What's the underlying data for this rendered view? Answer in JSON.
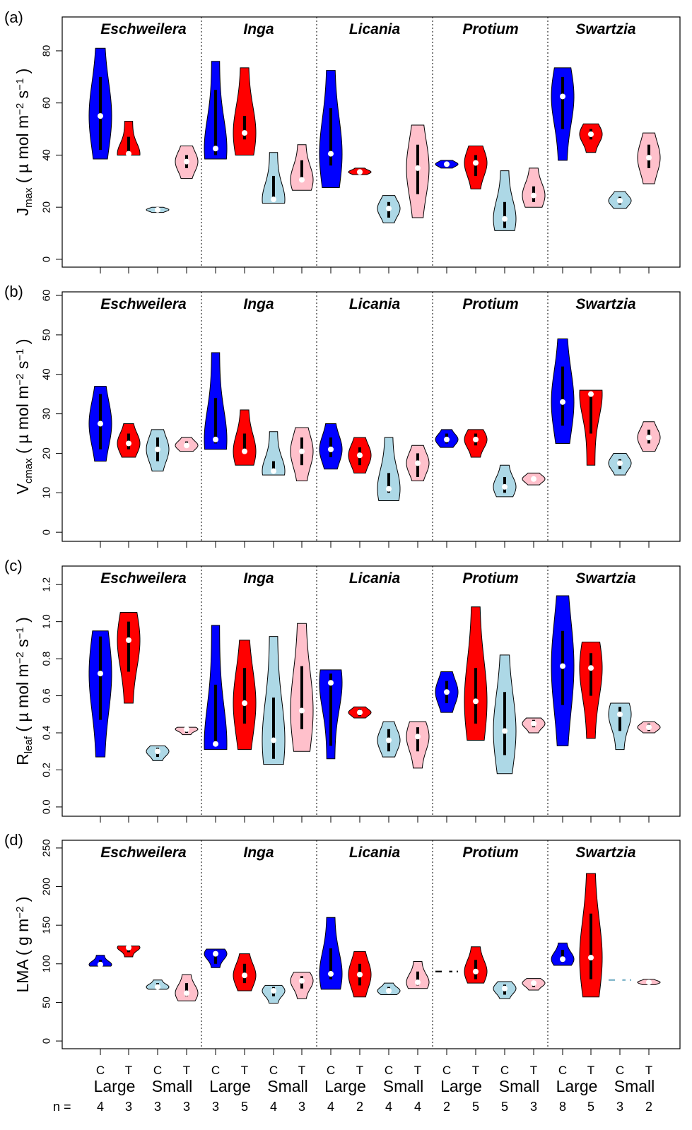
{
  "colors": {
    "CL": "#0000ff",
    "TL": "#ff0000",
    "CS": "#add8e6",
    "TS": "#ffc0cb"
  },
  "x_axis": {
    "treatment_labels": [
      "C",
      "T",
      "C",
      "T",
      "C",
      "T",
      "C",
      "T",
      "C",
      "T",
      "C",
      "T",
      "C",
      "T",
      "C",
      "T",
      "C",
      "T",
      "C",
      "T"
    ],
    "size_labels": [
      "Large",
      "Small",
      "Large",
      "Small",
      "Large",
      "Small",
      "Large",
      "Small",
      "Large",
      "Small"
    ],
    "n_prefix": "n =",
    "n_values": [
      "4",
      "3",
      "3",
      "3",
      "3",
      "5",
      "4",
      "3",
      "4",
      "2",
      "4",
      "4",
      "2",
      "5",
      "5",
      "3",
      "8",
      "5",
      "3",
      "2"
    ]
  },
  "chart_data": [
    {
      "type": "violin",
      "panel_label": "(a)",
      "ylabel": {
        "main": "J",
        "sub": "max",
        "units": " ( µ mol m",
        "sup1": "−2",
        "mid": " s",
        "sup2": "−1",
        "end": " )"
      },
      "ylim": [
        -3,
        93
      ],
      "yticks": [
        "0",
        "20",
        "40",
        "60",
        "80"
      ],
      "genera": [
        "Eschweilera",
        "Inga",
        "Licania",
        "Protium",
        "Swartzia"
      ],
      "groups": [
        "CL",
        "TL",
        "CS",
        "TS"
      ],
      "violins": [
        {
          "min": 38.5,
          "max": 81,
          "median": 55,
          "q1": 42,
          "q3": 70
        },
        {
          "min": 40,
          "max": 53,
          "median": 40.5,
          "q1": 40,
          "q3": 47
        },
        {
          "min": 18,
          "max": 20,
          "median": 19,
          "q1": 18.5,
          "q3": 19.5
        },
        {
          "min": 31,
          "max": 43.5,
          "median": 37.5,
          "q1": 35,
          "q3": 40
        },
        {
          "min": 38.5,
          "max": 76,
          "median": 42.5,
          "q1": 40,
          "q3": 65
        },
        {
          "min": 40,
          "max": 73.5,
          "median": 48.5,
          "q1": 46,
          "q3": 55
        },
        {
          "min": 21.5,
          "max": 41,
          "median": 23,
          "q1": 23,
          "q3": 32
        },
        {
          "min": 26.5,
          "max": 44,
          "median": 30.5,
          "q1": 30,
          "q3": 38
        },
        {
          "min": 27.5,
          "max": 72.5,
          "median": 40.5,
          "q1": 36,
          "q3": 58
        },
        {
          "min": 32.5,
          "max": 35,
          "median": 33.5,
          "q1": 33,
          "q3": 34
        },
        {
          "min": 14,
          "max": 24.5,
          "median": 19.5,
          "q1": 16,
          "q3": 22
        },
        {
          "min": 16,
          "max": 51.5,
          "median": 35,
          "q1": 25,
          "q3": 44
        },
        {
          "min": 35,
          "max": 38,
          "median": 36.5,
          "q1": 35.5,
          "q3": 37.5
        },
        {
          "min": 27,
          "max": 43.5,
          "median": 37,
          "q1": 32,
          "q3": 40
        },
        {
          "min": 11,
          "max": 34,
          "median": 15.5,
          "q1": 12,
          "q3": 22
        },
        {
          "min": 20,
          "max": 35,
          "median": 24.5,
          "q1": 22,
          "q3": 28
        },
        {
          "min": 38,
          "max": 73.5,
          "median": 62.5,
          "q1": 50,
          "q3": 70
        },
        {
          "min": 41,
          "max": 52,
          "median": 48,
          "q1": 46,
          "q3": 50
        },
        {
          "min": 19.5,
          "max": 26,
          "median": 22.5,
          "q1": 21,
          "q3": 24
        },
        {
          "min": 29,
          "max": 48.5,
          "median": 39,
          "q1": 35,
          "q3": 44
        }
      ]
    },
    {
      "type": "violin",
      "panel_label": "(b)",
      "ylabel": {
        "main": "V",
        "sub": "cmax",
        "units": " ( µ mol m",
        "sup1": "−2",
        "mid": " s",
        "sup2": "−1",
        "end": " )"
      },
      "ylim": [
        -2.3,
        60.9
      ],
      "yticks": [
        "0",
        "10",
        "20",
        "30",
        "40",
        "50",
        "60"
      ],
      "genera": [
        "Eschweilera",
        "Inga",
        "Licania",
        "Protium",
        "Swartzia"
      ],
      "groups": [
        "CL",
        "TL",
        "CS",
        "TS"
      ],
      "violins": [
        {
          "min": 18,
          "max": 37,
          "median": 27.5,
          "q1": 21,
          "q3": 35
        },
        {
          "min": 19,
          "max": 27.5,
          "median": 22.5,
          "q1": 21,
          "q3": 25
        },
        {
          "min": 15.5,
          "max": 26,
          "median": 21,
          "q1": 18,
          "q3": 24
        },
        {
          "min": 20.5,
          "max": 24,
          "median": 22,
          "q1": 21.5,
          "q3": 23
        },
        {
          "min": 21,
          "max": 45.5,
          "median": 23.5,
          "q1": 22.5,
          "q3": 34
        },
        {
          "min": 17,
          "max": 31,
          "median": 20.5,
          "q1": 20,
          "q3": 25
        },
        {
          "min": 14.5,
          "max": 25.5,
          "median": 15.5,
          "q1": 15,
          "q3": 18
        },
        {
          "min": 13,
          "max": 26.5,
          "median": 20.5,
          "q1": 17,
          "q3": 24
        },
        {
          "min": 16,
          "max": 27.5,
          "median": 21,
          "q1": 19,
          "q3": 24
        },
        {
          "min": 15,
          "max": 24,
          "median": 19.5,
          "q1": 17,
          "q3": 21.5
        },
        {
          "min": 8,
          "max": 24,
          "median": 11,
          "q1": 10,
          "q3": 15
        },
        {
          "min": 13,
          "max": 22,
          "median": 17.5,
          "q1": 14,
          "q3": 20
        },
        {
          "min": 21.5,
          "max": 26,
          "median": 23.5,
          "q1": 22.5,
          "q3": 25
        },
        {
          "min": 19,
          "max": 26,
          "median": 23.5,
          "q1": 22,
          "q3": 25
        },
        {
          "min": 9,
          "max": 17,
          "median": 11.5,
          "q1": 10,
          "q3": 14
        },
        {
          "min": 12,
          "max": 15,
          "median": 13.5,
          "q1": 13,
          "q3": 14
        },
        {
          "min": 22.5,
          "max": 49,
          "median": 33,
          "q1": 27,
          "q3": 42
        },
        {
          "min": 17,
          "max": 36,
          "median": 35,
          "q1": 25,
          "q3": 35.5
        },
        {
          "min": 14.5,
          "max": 20,
          "median": 17.5,
          "q1": 16,
          "q3": 18.5
        },
        {
          "min": 20.5,
          "max": 28,
          "median": 24,
          "q1": 22.5,
          "q3": 26
        }
      ]
    },
    {
      "type": "violin",
      "panel_label": "(c)",
      "ylabel": {
        "main": "R",
        "sub": "leaf",
        "units": " ( µ mol m",
        "sup1": "−2",
        "mid": " s",
        "sup2": "−1",
        "end": " )"
      },
      "ylim": [
        -0.05,
        1.3
      ],
      "yticks": [
        "0.0",
        "0.2",
        "0.4",
        "0.6",
        "0.8",
        "1.0",
        "1.2"
      ],
      "genera": [
        "Eschweilera",
        "Inga",
        "Licania",
        "Protium",
        "Swartzia"
      ],
      "groups": [
        "CL",
        "TL",
        "CS",
        "TS"
      ],
      "violins": [
        {
          "min": 0.27,
          "max": 0.95,
          "median": 0.72,
          "q1": 0.47,
          "q3": 0.92
        },
        {
          "min": 0.56,
          "max": 1.05,
          "median": 0.9,
          "q1": 0.73,
          "q3": 1.0
        },
        {
          "min": 0.25,
          "max": 0.33,
          "median": 0.3,
          "q1": 0.27,
          "q3": 0.32
        },
        {
          "min": 0.39,
          "max": 0.43,
          "median": 0.42,
          "q1": 0.4,
          "q3": 0.43
        },
        {
          "min": 0.31,
          "max": 0.98,
          "median": 0.34,
          "q1": 0.33,
          "q3": 0.66
        },
        {
          "min": 0.31,
          "max": 0.9,
          "median": 0.56,
          "q1": 0.45,
          "q3": 0.75
        },
        {
          "min": 0.23,
          "max": 0.92,
          "median": 0.36,
          "q1": 0.26,
          "q3": 0.59
        },
        {
          "min": 0.3,
          "max": 0.99,
          "median": 0.52,
          "q1": 0.42,
          "q3": 0.76
        },
        {
          "min": 0.26,
          "max": 0.74,
          "median": 0.67,
          "q1": 0.33,
          "q3": 0.72
        },
        {
          "min": 0.48,
          "max": 0.54,
          "median": 0.51,
          "q1": 0.49,
          "q3": 0.53
        },
        {
          "min": 0.27,
          "max": 0.46,
          "median": 0.36,
          "q1": 0.3,
          "q3": 0.42
        },
        {
          "min": 0.21,
          "max": 0.46,
          "median": 0.38,
          "q1": 0.3,
          "q3": 0.43
        },
        {
          "min": 0.51,
          "max": 0.73,
          "median": 0.62,
          "q1": 0.56,
          "q3": 0.68
        },
        {
          "min": 0.36,
          "max": 1.08,
          "median": 0.57,
          "q1": 0.45,
          "q3": 0.75
        },
        {
          "min": 0.18,
          "max": 0.82,
          "median": 0.41,
          "q1": 0.28,
          "q3": 0.62
        },
        {
          "min": 0.4,
          "max": 0.48,
          "median": 0.45,
          "q1": 0.43,
          "q3": 0.47
        },
        {
          "min": 0.33,
          "max": 1.14,
          "median": 0.76,
          "q1": 0.55,
          "q3": 0.95
        },
        {
          "min": 0.37,
          "max": 0.89,
          "median": 0.75,
          "q1": 0.6,
          "q3": 0.83
        },
        {
          "min": 0.31,
          "max": 0.56,
          "median": 0.5,
          "q1": 0.41,
          "q3": 0.54
        },
        {
          "min": 0.4,
          "max": 0.46,
          "median": 0.43,
          "q1": 0.41,
          "q3": 0.45
        }
      ]
    },
    {
      "type": "violin",
      "panel_label": "(d)",
      "ylabel": {
        "main": "LMA",
        "sub": "",
        "units": " ( g m",
        "sup1": "−2",
        "mid": "",
        "sup2": "",
        "end": " )"
      },
      "ylim": [
        -10,
        260
      ],
      "yticks": [
        "0",
        "50",
        "100",
        "150",
        "200",
        "250"
      ],
      "genera": [
        "Eschweilera",
        "Inga",
        "Licania",
        "Protium",
        "Swartzia"
      ],
      "groups": [
        "CL",
        "TL",
        "CS",
        "TS"
      ],
      "violins": [
        {
          "min": 97,
          "max": 111,
          "median": 99,
          "q1": 98,
          "q3": 105
        },
        {
          "min": 109,
          "max": 123,
          "median": 121,
          "q1": 115,
          "q3": 122
        },
        {
          "min": 67,
          "max": 79,
          "median": 70,
          "q1": 68,
          "q3": 75
        },
        {
          "min": 52,
          "max": 86,
          "median": 62,
          "q1": 58,
          "q3": 75
        },
        {
          "min": 95,
          "max": 119,
          "median": 113,
          "q1": 100,
          "q3": 117
        },
        {
          "min": 65,
          "max": 113,
          "median": 85,
          "q1": 75,
          "q3": 100
        },
        {
          "min": 49,
          "max": 72,
          "median": 65,
          "q1": 58,
          "q3": 70
        },
        {
          "min": 55,
          "max": 89,
          "median": 78,
          "q1": 68,
          "q3": 84
        },
        {
          "min": 67,
          "max": 160,
          "median": 87,
          "q1": 80,
          "q3": 120
        },
        {
          "min": 57,
          "max": 116,
          "median": 86,
          "q1": 72,
          "q3": 100
        },
        {
          "min": 60,
          "max": 75,
          "median": 65,
          "q1": 62,
          "q3": 70
        },
        {
          "min": 68,
          "max": 103,
          "median": 76,
          "q1": 72,
          "q3": 90
        },
        {
          "min": 89,
          "max": 91,
          "median": 90,
          "q1": 89.5,
          "q3": 90.5,
          "flat": true
        },
        {
          "min": 75,
          "max": 122,
          "median": 90,
          "q1": 80,
          "q3": 105
        },
        {
          "min": 55,
          "max": 77,
          "median": 68,
          "q1": 60,
          "q3": 73
        },
        {
          "min": 66,
          "max": 81,
          "median": 75,
          "q1": 70,
          "q3": 78
        },
        {
          "min": 98,
          "max": 127,
          "median": 106,
          "q1": 102,
          "q3": 118
        },
        {
          "min": 57,
          "max": 217,
          "median": 108,
          "q1": 80,
          "q3": 165
        },
        {
          "min": 77,
          "max": 81,
          "median": 79,
          "q1": 78,
          "q3": 80,
          "flat": true
        },
        {
          "min": 73,
          "max": 80,
          "median": 76,
          "q1": 74,
          "q3": 78
        }
      ]
    }
  ]
}
